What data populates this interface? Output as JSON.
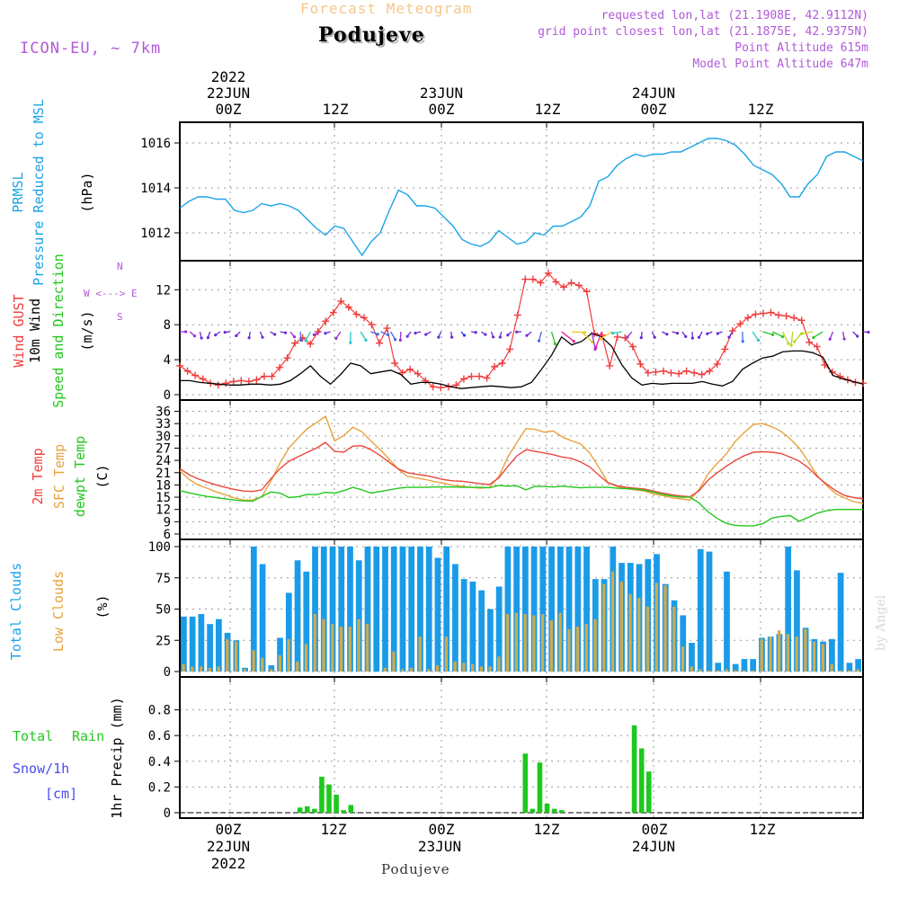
{
  "header": {
    "forecast_title": "Forecast Meteogram",
    "place": "Podujeve",
    "model": "ICON-EU, ~ 7km",
    "requested": "requested lon,lat (21.1908E, 42.9112N)",
    "grid_point": "grid point closest lon,lat (21.1875E, 42.9375N)",
    "point_altitude": "Point Altitude 615m",
    "model_altitude": "Model Point Altitude 647m",
    "credit": "by Angel",
    "footer_place": "Podujeve"
  },
  "time_axis": {
    "year": "2022",
    "labels": [
      {
        "top": "22JUN",
        "bottom": "00Z"
      },
      {
        "top": "",
        "bottom": "12Z"
      },
      {
        "top": "23JUN",
        "bottom": "00Z"
      },
      {
        "top": "",
        "bottom": "12Z"
      },
      {
        "top": "24JUN",
        "bottom": "00Z"
      },
      {
        "top": "",
        "bottom": "12Z"
      }
    ]
  },
  "panel_labels": {
    "prmsl_a": "PRMSL",
    "prmsl_b": "Pressure Reduced to MSL",
    "prmsl_unit": "(hPa)",
    "gust": "Wind GUST",
    "wind10": "10m Wind",
    "wind_dir": "Speed and Direction",
    "wind_unit": "(m/s)",
    "compass_n": "N",
    "compass_s": "S",
    "compass_mid": "W <---> E",
    "t2m": "2m Temp",
    "tsfc": "SFC Temp",
    "tdew": "dewpt Temp",
    "temp_unit": "(C)",
    "tcc": "Total Clouds",
    "lcc": "Low Clouds",
    "cloud_unit": "(%)",
    "rain_a": "Total",
    "rain_b": "Rain",
    "snow": "Snow/1h",
    "snow_unit": "[cm]",
    "precip": "1hr Precip (mm)"
  },
  "colors": {
    "pressure": "#1aa3e8",
    "gust": "#f03c3c",
    "wind10": "#000000",
    "t2m": "#e8483c",
    "tsfc": "#e8a23c",
    "tdew": "#22c81e",
    "tcc": "#1a9be8",
    "lcc": "#d2aa4c",
    "precip": "#1ec81e",
    "title_orange": "#f5c78a",
    "purple": "#b05ad8",
    "rain_label": "#22c81e",
    "snow_label": "#4a4af0"
  },
  "chart_data": [
    {
      "type": "line",
      "ylabel": "(hPa)",
      "ylim": [
        1011.0,
        1016.6
      ],
      "yticks": [
        "1012",
        "1014",
        "1016"
      ],
      "series": [
        {
          "values": [
            1013.1,
            1013.4,
            1013.6,
            1013.6,
            1013.5,
            1013.5,
            1013.0,
            1012.9,
            1013.0,
            1013.3,
            1013.2,
            1013.3,
            1013.2,
            1013.0,
            1012.6,
            1012.2,
            1011.9,
            1012.3,
            1012.2,
            1011.6,
            1011.0,
            1011.6,
            1012.0,
            1013.0,
            1013.9,
            1013.7,
            1013.2,
            1013.2,
            1013.1,
            1012.7,
            1012.3,
            1011.7,
            1011.5,
            1011.4,
            1011.6,
            1012.1,
            1011.8,
            1011.5,
            1011.6,
            1012.0,
            1011.9,
            1012.3,
            1012.3,
            1012.5,
            1012.7,
            1013.2,
            1014.3,
            1014.5,
            1015.0,
            1015.3,
            1015.5,
            1015.4,
            1015.5,
            1015.5,
            1015.6,
            1015.6,
            1015.8,
            1016.0,
            1016.2,
            1016.2,
            1016.1,
            1015.9,
            1015.5,
            1015.0,
            1014.8,
            1014.6,
            1014.2,
            1013.6,
            1013.6,
            1014.2,
            1014.6,
            1015.4,
            1015.6,
            1015.6,
            1015.4,
            1015.2
          ]
        }
      ]
    },
    {
      "type": "line",
      "ylabel": "(m/s)",
      "ylim": [
        0,
        14.5
      ],
      "yticks": [
        "0",
        "4",
        "8",
        "12"
      ],
      "series": [
        {
          "name": "Wind GUST",
          "values": [
            3.3,
            2.7,
            2.2,
            1.8,
            1.3,
            1.1,
            1.3,
            1.5,
            1.6,
            1.5,
            1.7,
            2.1,
            2.1,
            3.1,
            4.2,
            5.9,
            6.5,
            5.8,
            7.2,
            8.4,
            9.4,
            10.7,
            10.0,
            9.2,
            8.8,
            8.0,
            5.9,
            7.6,
            3.6,
            2.5,
            2.9,
            2.4,
            1.6,
            0.9,
            0.8,
            0.9,
            1.1,
            1.8,
            2.1,
            2.1,
            1.9,
            3.2,
            3.6,
            5.2,
            9.1,
            13.2,
            13.2,
            12.8,
            13.9,
            12.9,
            12.3,
            12.8,
            12.5,
            11.8,
            7.0,
            6.8,
            3.3,
            6.6,
            6.5,
            5.5,
            3.5,
            2.5,
            2.6,
            2.7,
            2.5,
            2.4,
            2.7,
            2.5,
            2.3,
            2.7,
            3.5,
            5.2,
            7.3,
            8.1,
            8.8,
            9.2,
            9.3,
            9.4,
            9.1,
            9.0,
            8.8,
            8.5,
            6.0,
            5.5,
            3.4,
            2.6,
            2.1,
            1.7,
            1.4,
            1.3
          ]
        },
        {
          "name": "10m Wind",
          "values": [
            1.6,
            1.6,
            1.4,
            1.3,
            1.2,
            1.1,
            1.1,
            1.2,
            1.2,
            1.1,
            1.2,
            1.6,
            2.4,
            3.3,
            2.1,
            1.2,
            2.3,
            3.6,
            3.3,
            2.4,
            2.6,
            2.8,
            2.3,
            1.2,
            1.4,
            1.4,
            1.2,
            0.9,
            0.7,
            0.8,
            0.9,
            1.0,
            0.9,
            0.8,
            0.9,
            1.4,
            2.9,
            4.5,
            6.6,
            5.7,
            6.1,
            7.0,
            6.6,
            5.5,
            3.4,
            1.9,
            1.1,
            1.3,
            1.2,
            1.3,
            1.3,
            1.3,
            1.5,
            1.2,
            1.0,
            1.5,
            2.9,
            3.6,
            4.2,
            4.4,
            4.9,
            5.0,
            5.0,
            4.8,
            4.3,
            2.2,
            1.8,
            1.5,
            1.2
          ]
        }
      ]
    },
    {
      "type": "line",
      "ylabel": "(C)",
      "ylim": [
        6,
        37
      ],
      "yticks": [
        "6",
        "9",
        "12",
        "15",
        "18",
        "21",
        "24",
        "27",
        "30",
        "33",
        "36"
      ],
      "series": [
        {
          "name": "2m Temp",
          "values": [
            22.0,
            20.5,
            19.5,
            18.7,
            18.0,
            17.4,
            16.9,
            16.5,
            16.4,
            16.8,
            19.5,
            22.0,
            23.8,
            24.9,
            26.0,
            27.0,
            28.4,
            26.2,
            26.0,
            27.5,
            27.6,
            26.6,
            25.2,
            23.5,
            21.9,
            21.0,
            20.6,
            20.3,
            19.8,
            19.3,
            19.0,
            18.9,
            18.6,
            18.3,
            18.1,
            19.7,
            22.5,
            25.1,
            26.6,
            26.2,
            25.8,
            25.4,
            24.8,
            24.5,
            23.6,
            22.4,
            20.4,
            18.5,
            17.8,
            17.4,
            17.2,
            17.0,
            16.5,
            16.0,
            15.6,
            15.3,
            15.1,
            16.6,
            19.2,
            21.0,
            22.6,
            24.0,
            25.2,
            26.0,
            26.1,
            26.0,
            25.7,
            24.8,
            23.8,
            22.2,
            20.0,
            18.2,
            16.6,
            15.4,
            14.9,
            14.6
          ]
        },
        {
          "name": "SFC Temp",
          "values": [
            21.5,
            19.4,
            18.0,
            17.2,
            16.3,
            15.6,
            14.8,
            14.3,
            14.3,
            15.1,
            18.9,
            23.4,
            27.1,
            29.5,
            31.8,
            33.2,
            34.8,
            28.8,
            30.1,
            32.1,
            31.0,
            28.7,
            26.6,
            24.3,
            21.8,
            20.1,
            19.7,
            19.3,
            18.8,
            18.4,
            17.9,
            17.7,
            17.4,
            17.2,
            17.4,
            20.0,
            24.8,
            28.4,
            31.8,
            31.6,
            30.9,
            31.2,
            29.7,
            28.8,
            28.0,
            25.8,
            22.3,
            18.6,
            17.6,
            17.1,
            16.8,
            16.5,
            15.8,
            15.4,
            14.9,
            14.6,
            14.3,
            16.9,
            20.7,
            23.3,
            25.6,
            28.7,
            30.9,
            32.8,
            33.0,
            32.2,
            31.1,
            29.3,
            27.0,
            23.7,
            20.2,
            17.8,
            15.9,
            14.8,
            13.9,
            13.5
          ]
        },
        {
          "name": "dewpt Temp",
          "values": [
            16.6,
            16.1,
            15.6,
            15.2,
            14.9,
            14.6,
            14.3,
            14.1,
            14.0,
            15.2,
            16.3,
            16.0,
            14.9,
            15.1,
            15.7,
            15.6,
            16.2,
            16.0,
            16.6,
            17.4,
            16.8,
            16.0,
            16.4,
            16.8,
            17.2,
            17.4,
            17.4,
            17.4,
            17.5,
            17.5,
            17.5,
            17.4,
            17.4,
            17.4,
            17.3,
            17.9,
            17.7,
            17.8,
            16.8,
            17.7,
            17.6,
            17.5,
            17.7,
            17.5,
            17.3,
            17.4,
            17.4,
            17.4,
            17.2,
            17.1,
            17.0,
            16.7,
            16.2,
            15.7,
            15.3,
            15.0,
            15.0,
            13.6,
            11.4,
            9.8,
            8.6,
            8.1,
            8.0,
            8.0,
            8.5,
            9.9,
            10.3,
            10.5,
            9.1,
            10.1,
            11.1,
            11.7,
            12.0,
            12.0,
            12.0,
            12.0
          ]
        }
      ]
    },
    {
      "type": "bar",
      "ylabel": "(%)",
      "ylim": [
        0,
        100
      ],
      "yticks": [
        "0",
        "25",
        "50",
        "75",
        "100"
      ],
      "series": [
        {
          "name": "Total Clouds",
          "values": [
            44,
            44,
            46,
            38,
            42,
            31,
            25,
            3,
            100,
            86,
            5,
            27,
            63,
            89,
            80,
            100,
            100,
            100,
            100,
            100,
            89,
            100,
            100,
            100,
            100,
            100,
            100,
            100,
            100,
            91,
            100,
            86,
            74,
            72,
            65,
            50,
            68,
            100,
            100,
            100,
            100,
            100,
            100,
            100,
            100,
            100,
            100,
            74,
            74,
            100,
            87,
            87,
            86,
            90,
            94,
            70,
            57,
            45,
            23,
            98,
            96,
            7,
            80,
            6,
            10,
            10,
            27,
            28,
            30,
            100,
            81,
            35,
            26,
            24,
            26,
            79,
            7,
            10
          ]
        },
        {
          "name": "Low Clouds",
          "values": [
            6,
            4,
            4,
            3,
            4,
            26,
            24,
            2,
            17,
            11,
            2,
            13,
            26,
            8,
            22,
            46,
            42,
            38,
            36,
            36,
            42,
            38,
            0,
            3,
            16,
            2,
            3,
            28,
            2,
            5,
            28,
            8,
            7,
            6,
            4,
            4,
            12,
            46,
            47,
            46,
            45,
            46,
            41,
            47,
            34,
            36,
            38,
            42,
            70,
            80,
            72,
            62,
            59,
            52,
            71,
            69,
            52,
            20,
            4,
            2,
            1,
            1,
            2,
            1,
            1,
            1,
            26,
            28,
            33,
            30,
            28,
            34,
            24,
            22,
            6,
            1,
            1,
            2
          ]
        }
      ]
    },
    {
      "type": "bar",
      "ylabel": "1hr Precip (mm)",
      "ylim": [
        0,
        1.0
      ],
      "yticks": [
        "0",
        "0.2",
        "0.4",
        "0.6",
        "0.8"
      ],
      "series": [
        {
          "name": "Total Rain",
          "values": [
            0,
            0,
            0,
            0,
            0,
            0,
            0,
            0,
            0,
            0,
            0,
            0,
            0,
            0,
            0,
            0,
            0.04,
            0.05,
            0.03,
            0.28,
            0.22,
            0.14,
            0.02,
            0.06,
            0,
            0,
            0,
            0,
            0,
            0,
            0,
            0,
            0,
            0,
            0,
            0,
            0,
            0,
            0,
            0,
            0,
            0,
            0,
            0,
            0,
            0,
            0,
            0.46,
            0.03,
            0.39,
            0.07,
            0.03,
            0.02,
            0,
            0,
            0,
            0,
            0,
            0,
            0,
            0,
            0,
            0.68,
            0.5,
            0.32,
            0,
            0,
            0,
            0,
            0,
            0,
            0,
            0,
            0,
            0,
            0,
            0,
            0,
            0,
            0,
            0,
            0,
            0,
            0,
            0,
            0,
            0,
            0,
            0,
            0,
            0,
            0,
            0,
            0
          ]
        }
      ]
    }
  ]
}
